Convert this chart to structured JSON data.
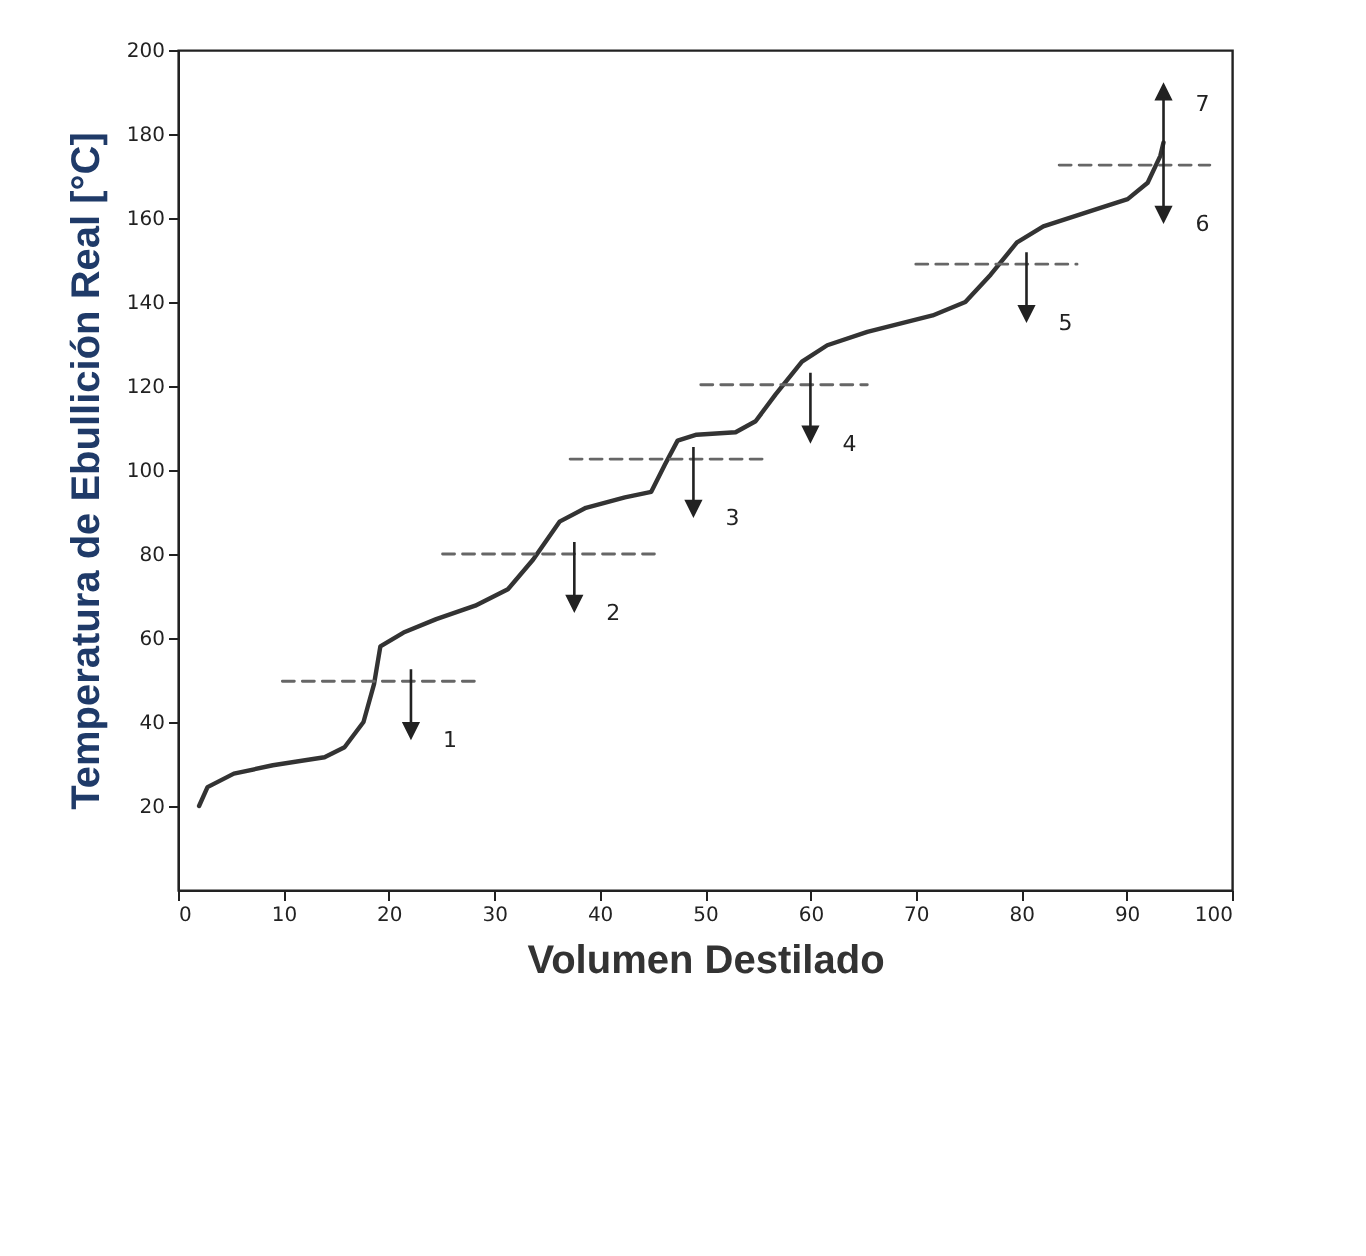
{
  "chart_data": {
    "type": "line",
    "xlabel": "Volumen Destilado",
    "ylabel": "Temperatura de  Ebullición Real [°C]",
    "xlim": [
      0,
      100
    ],
    "ylim": [
      0,
      200
    ],
    "xticks": [
      0,
      10,
      20,
      30,
      40,
      50,
      60,
      70,
      80,
      90,
      100
    ],
    "yticks": [
      20,
      40,
      60,
      80,
      100,
      120,
      140,
      160,
      180,
      200
    ],
    "grid": false,
    "series": [
      {
        "type": "line",
        "line_style": "solid",
        "color": "#333333",
        "x": [
          2,
          2.8,
          5.3,
          9,
          13.9,
          15.8,
          17.6,
          18.6,
          19.2,
          21.4,
          24.5,
          28.2,
          31.3,
          33.7,
          36.2,
          38.7,
          42.4,
          44.9,
          46.2,
          47.4,
          49.2,
          52.9,
          54.8,
          56.7,
          59.2,
          61.6,
          65.4,
          71.6,
          74.7,
          77.1,
          79.6,
          82.1,
          87,
          90.1,
          92,
          93.2,
          93.5
        ],
        "values": [
          20,
          24.5,
          27.7,
          29.7,
          31.6,
          34,
          40,
          49,
          58,
          61.3,
          64.5,
          67.7,
          71.6,
          78.7,
          87.7,
          91,
          93.5,
          94.8,
          101.3,
          107,
          108.4,
          109,
          111.6,
          118,
          125.8,
          129.7,
          132.9,
          136.8,
          140,
          146.5,
          154.2,
          158,
          162,
          164.5,
          168.4,
          174.8,
          178
        ]
      },
      {
        "type": "line",
        "line_style": "dashed",
        "color": "#666666",
        "x": [
          9.9,
          28.5
        ],
        "values": [
          49.7,
          49.7
        ]
      },
      {
        "type": "line",
        "line_style": "dashed",
        "color": "#666666",
        "x": [
          25.1,
          45.2
        ],
        "values": [
          80,
          80
        ]
      },
      {
        "type": "line",
        "line_style": "dashed",
        "color": "#666666",
        "x": [
          37.2,
          55.5
        ],
        "values": [
          102.6,
          102.6
        ]
      },
      {
        "type": "line",
        "line_style": "dashed",
        "color": "#666666",
        "x": [
          49.6,
          65.4
        ],
        "values": [
          120.3,
          120.3
        ]
      },
      {
        "type": "line",
        "line_style": "dashed",
        "color": "#666666",
        "x": [
          70,
          85.3
        ],
        "values": [
          149,
          149
        ]
      },
      {
        "type": "line",
        "line_style": "dashed",
        "color": "#666666",
        "x": [
          83.6,
          97.9
        ],
        "values": [
          172.6,
          172.6
        ]
      }
    ],
    "annotations": [
      {
        "text": "1",
        "x": 24,
        "y": 49.7
      },
      {
        "text": "2",
        "x": 39.5,
        "y": 80
      },
      {
        "text": "3",
        "x": 50.8,
        "y": 102.6
      },
      {
        "text": "4",
        "x": 61.9,
        "y": 120.3
      },
      {
        "text": "5",
        "x": 82.4,
        "y": 149
      },
      {
        "text": "6",
        "x": 95.4,
        "y": 172.6
      },
      {
        "text": "7",
        "x": 95.4,
        "y": 172.6
      }
    ]
  }
}
